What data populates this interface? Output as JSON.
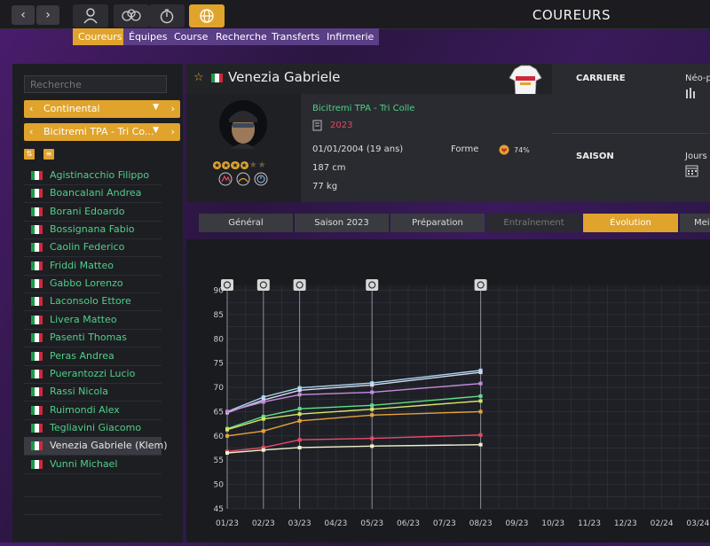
{
  "page_title": "COUREURS",
  "subnav": [
    {
      "label": "Coureurs",
      "active": true
    },
    {
      "label": "Équipes",
      "active": false
    },
    {
      "label": "Course",
      "active": false
    },
    {
      "label": "Recherche",
      "active": false
    },
    {
      "label": "Transferts",
      "active": false
    },
    {
      "label": "Infirmerie",
      "active": false
    }
  ],
  "sidebar": {
    "search_placeholder": "Recherche",
    "region_filter": "Continental",
    "team_filter": "Bicitremi TPA - Tri Co...",
    "riders": [
      "Agistinacchio Filippo",
      "Boancalani Andrea",
      "Borani Edoardo",
      "Bossignana Fabio",
      "Caolin Federico",
      "Friddi Matteo",
      "Gabbo Lorenzo",
      "Laconsolo Ettore",
      "Livera Matteo",
      "Pasenti Thomas",
      "Peras Andrea",
      "Puerantozzi Lucio",
      "Rassi Nicola",
      "Ruimondi Alex",
      "Tegliavini Giacomo",
      "Venezia Gabriele (Klem)",
      "Vunni Michael"
    ],
    "selected_index": 15
  },
  "rider": {
    "name": "Venezia Gabriele",
    "team": "Bicitremi TPA - Tri Colle",
    "contract_year": "2023",
    "birth": "01/01/2004 (19 ans)",
    "height": "187 cm",
    "weight": "77 kg",
    "form_label": "Forme",
    "form_value": "74%",
    "stars_filled": 4,
    "stars_total": 6
  },
  "right_panel": {
    "career_label": "CARRIERE",
    "career_value": "Néo-p",
    "season_label": "SAISON",
    "season_value": "Jours c"
  },
  "profile_tabs": [
    {
      "label": "Général",
      "state": "normal"
    },
    {
      "label": "Saison 2023",
      "state": "normal"
    },
    {
      "label": "Préparation",
      "state": "normal"
    },
    {
      "label": "Entraînement",
      "state": "dim"
    },
    {
      "label": "Évolution",
      "state": "active"
    },
    {
      "label": "Meil",
      "state": "normal"
    }
  ],
  "colors": {
    "accent": "#e0a32c",
    "green_text": "#4fd088",
    "red_text": "#e8485e"
  },
  "chart_data": {
    "type": "line",
    "x_ticks": [
      "01/23",
      "02/23",
      "03/23",
      "04/23",
      "05/23",
      "06/23",
      "07/23",
      "08/23",
      "09/23",
      "10/23",
      "11/23",
      "12/23",
      "02/24",
      "03/24"
    ],
    "y_ticks": [
      45,
      50,
      55,
      60,
      65,
      70,
      75,
      80,
      85,
      90
    ],
    "ylim": [
      45,
      91
    ],
    "grid": true,
    "event_markers_at": [
      "01/23",
      "02/23",
      "03/23",
      "05/23",
      "08/23"
    ],
    "x_points": [
      "01/23",
      "02/23",
      "03/23",
      "05/23",
      "08/23"
    ],
    "series": [
      {
        "color": "#a9d8ee",
        "values": [
          65,
          68,
          69.9,
          70.9,
          73.5
        ]
      },
      {
        "color": "#d7d7f2",
        "values": [
          64.8,
          67.4,
          69.4,
          70.5,
          73.1
        ]
      },
      {
        "color": "#c98be0",
        "values": [
          65,
          67,
          68.5,
          69,
          70.8
        ]
      },
      {
        "color": "#5ee08a",
        "values": [
          61.5,
          64,
          65.6,
          66.3,
          68.2
        ]
      },
      {
        "color": "#d7e566",
        "values": [
          61.3,
          63.5,
          64.5,
          65.5,
          67.2
        ]
      },
      {
        "color": "#e8a23a",
        "values": [
          60,
          61,
          63.1,
          64.3,
          65
        ]
      },
      {
        "color": "#e84a6a",
        "values": [
          56.8,
          57.6,
          59.2,
          59.5,
          60.2
        ]
      },
      {
        "color": "#f2f2cc",
        "values": [
          56.5,
          57.1,
          57.6,
          57.9,
          58.2
        ]
      }
    ]
  }
}
